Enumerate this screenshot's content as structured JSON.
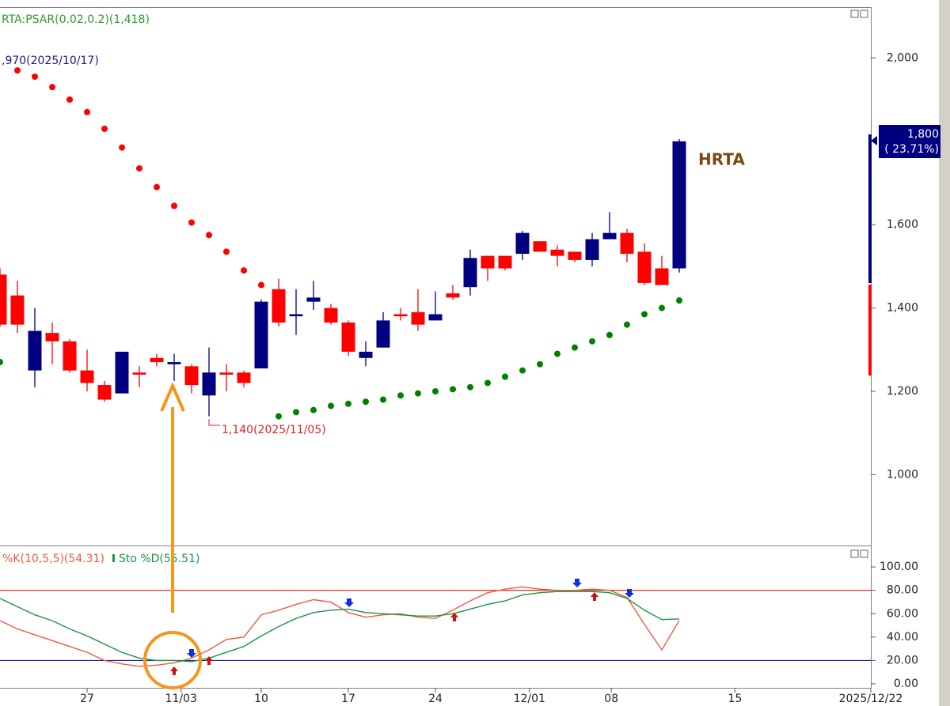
{
  "chart_data": [
    {
      "type": "candlestick",
      "indicator_label": "RTA:PSAR(0.02,0.2)(1,418)",
      "annotations": [
        ",970(2025/10/17)",
        "1,140(2025/11/05)"
      ],
      "name": "HRTA",
      "last_label": "1,800",
      "change_label": "( 23.71%)",
      "xlim": [
        0,
        50
      ],
      "xticks": [
        {
          "value": 5,
          "label": "27"
        },
        {
          "value": 10.4,
          "label": "11/03"
        },
        {
          "value": 15,
          "label": "10"
        },
        {
          "value": 20,
          "label": "17"
        },
        {
          "value": 25,
          "label": "24"
        },
        {
          "value": 30.4,
          "label": "12/01"
        },
        {
          "value": 35.1,
          "label": "08"
        },
        {
          "value": 42.2,
          "label": "15"
        },
        {
          "value": 50,
          "label": "2025/12/22"
        }
      ],
      "ylim": [
        830,
        2120
      ],
      "yticks": [
        {
          "value": 1000,
          "label": "1,000"
        },
        {
          "value": 1200,
          "label": "1,200"
        },
        {
          "value": 1400,
          "label": "1,400"
        },
        {
          "value": 1600,
          "label": "1,600"
        },
        {
          "value": 2000,
          "label": "2,000"
        }
      ],
      "grid": false,
      "up_color": "#000080",
      "down_color": "#ff0000",
      "open": [
        1480,
        1430,
        1250,
        1340,
        1320,
        1250,
        1215,
        1195,
        1245,
        1280,
        1265,
        1260,
        1190,
        1245,
        1245,
        1255,
        1445,
        1380,
        1415,
        1400,
        1365,
        1280,
        1305,
        1385,
        1390,
        1370,
        1435,
        1450,
        1525,
        1525,
        1530,
        1560,
        1540,
        1535,
        1515,
        1565,
        1580,
        1535,
        1495,
        1495
      ],
      "high": [
        1495,
        1465,
        1400,
        1365,
        1325,
        1300,
        1225,
        1295,
        1260,
        1290,
        1290,
        1265,
        1305,
        1265,
        1250,
        1420,
        1470,
        1445,
        1465,
        1410,
        1370,
        1320,
        1390,
        1400,
        1445,
        1440,
        1455,
        1540,
        1525,
        1525,
        1585,
        1560,
        1550,
        1535,
        1580,
        1630,
        1590,
        1555,
        1525,
        1805
      ],
      "low": [
        1355,
        1340,
        1210,
        1265,
        1245,
        1200,
        1175,
        1195,
        1210,
        1260,
        1225,
        1195,
        1140,
        1200,
        1210,
        1255,
        1355,
        1335,
        1395,
        1360,
        1285,
        1260,
        1305,
        1370,
        1345,
        1370,
        1420,
        1430,
        1465,
        1490,
        1515,
        1535,
        1500,
        1510,
        1500,
        1565,
        1510,
        1455,
        1455,
        1485
      ],
      "close": [
        1360,
        1360,
        1345,
        1320,
        1250,
        1220,
        1180,
        1295,
        1240,
        1270,
        1270,
        1215,
        1245,
        1240,
        1220,
        1415,
        1365,
        1385,
        1425,
        1365,
        1295,
        1295,
        1370,
        1380,
        1360,
        1385,
        1425,
        1520,
        1495,
        1495,
        1580,
        1535,
        1525,
        1515,
        1565,
        1580,
        1530,
        1460,
        1455,
        1800
      ],
      "psar": {
        "up_color": "#008000",
        "down_color": "#ff0000",
        "values": [
          1270,
          1970,
          1955,
          1930,
          1900,
          1870,
          1830,
          1785,
          1735,
          1690,
          1645,
          1605,
          1575,
          1535,
          1490,
          1455,
          1140,
          1150,
          1155,
          1165,
          1170,
          1175,
          1180,
          1190,
          1195,
          1200,
          1205,
          1210,
          1220,
          1235,
          1250,
          1265,
          1290,
          1305,
          1320,
          1335,
          1360,
          1385,
          1400,
          1418
        ]
      }
    },
    {
      "type": "line",
      "xlim": [
        0,
        50
      ],
      "ylim": [
        -3.4,
        117
      ],
      "yticks": [
        {
          "value": 100,
          "label": "100.00"
        },
        {
          "value": 80,
          "label": "80.00"
        },
        {
          "value": 60,
          "label": "60.00"
        },
        {
          "value": 40,
          "label": "40.00"
        },
        {
          "value": 20,
          "label": "20.00"
        },
        {
          "value": 0,
          "label": "0.00"
        }
      ],
      "hlines": [
        {
          "value": 80,
          "color": "#cc0000"
        },
        {
          "value": 20,
          "color": "#000080"
        }
      ],
      "series": [
        {
          "name": "%K(10,5,5)(54.31)",
          "color": "#f05a3c",
          "values": [
            54,
            47,
            42,
            37,
            32,
            27,
            20,
            17,
            15,
            16,
            18,
            22,
            29,
            38,
            40,
            59,
            63,
            68,
            72,
            70,
            61,
            57,
            59,
            60,
            57,
            56,
            63,
            71,
            78,
            81,
            83,
            81,
            80,
            80,
            81,
            80,
            74,
            51,
            29,
            54.31
          ]
        },
        {
          "name": "Sto %D(55.51)",
          "color": "#1a9641",
          "values": [
            73,
            66,
            59,
            54,
            47,
            41,
            34,
            27,
            22,
            20,
            20,
            19,
            22,
            27,
            32,
            41,
            49,
            56,
            61,
            63,
            64,
            61,
            60,
            59,
            58,
            58,
            60,
            64,
            68,
            71,
            76,
            78,
            79,
            79,
            79,
            78,
            73,
            63,
            55,
            55.51
          ]
        }
      ]
    }
  ]
}
